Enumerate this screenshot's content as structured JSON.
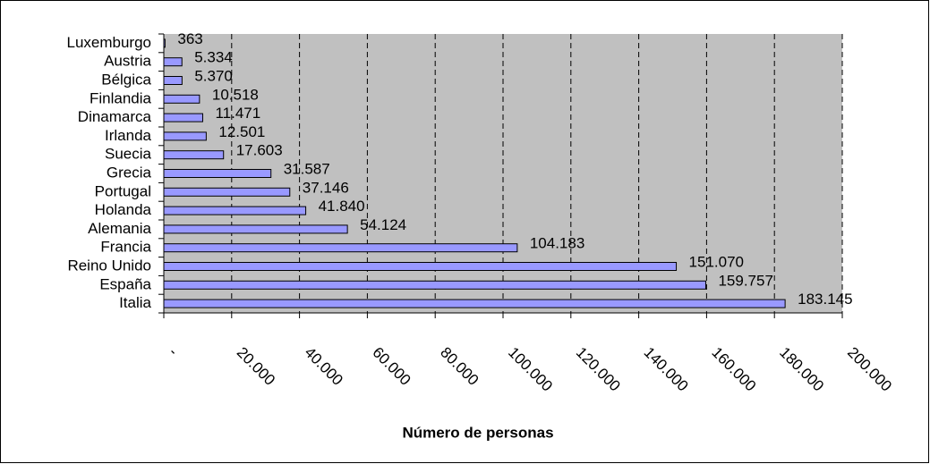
{
  "chart_data": {
    "type": "bar",
    "orientation": "horizontal",
    "x_label": "Número de personas",
    "categories": [
      "Luxemburgo",
      "Austria",
      "Bélgica",
      "Finlandia",
      "Dinamarca",
      "Irlanda",
      "Suecia",
      "Grecia",
      "Portugal",
      "Holanda",
      "Alemania",
      "Francia",
      "Reino Unido",
      "España",
      "Italia"
    ],
    "values": [
      363,
      5334,
      5370,
      10518,
      11471,
      12501,
      17603,
      31587,
      37146,
      41840,
      54124,
      104183,
      151070,
      159757,
      183145
    ],
    "value_labels": [
      "363",
      "5.334",
      "5.370",
      "10.518",
      "11.471",
      "12.501",
      "17.603",
      "31.587",
      "37.146",
      "41.840",
      "54.124",
      "104.183",
      "151.070",
      "159.757",
      "183.145"
    ],
    "color": "#9999ff",
    "xlim": [
      0,
      200000
    ],
    "xticks": [
      {
        "value": 0,
        "label": "-"
      },
      {
        "value": 20000,
        "label": "20.000"
      },
      {
        "value": 40000,
        "label": "40.000"
      },
      {
        "value": 60000,
        "label": "60.000"
      },
      {
        "value": 80000,
        "label": "80.000"
      },
      {
        "value": 100000,
        "label": "100.000"
      },
      {
        "value": 120000,
        "label": "120.000"
      },
      {
        "value": 140000,
        "label": "140.000"
      },
      {
        "value": 160000,
        "label": "160.000"
      },
      {
        "value": 180000,
        "label": "180.000"
      },
      {
        "value": 200000,
        "label": "200.000"
      }
    ],
    "grid": true
  }
}
